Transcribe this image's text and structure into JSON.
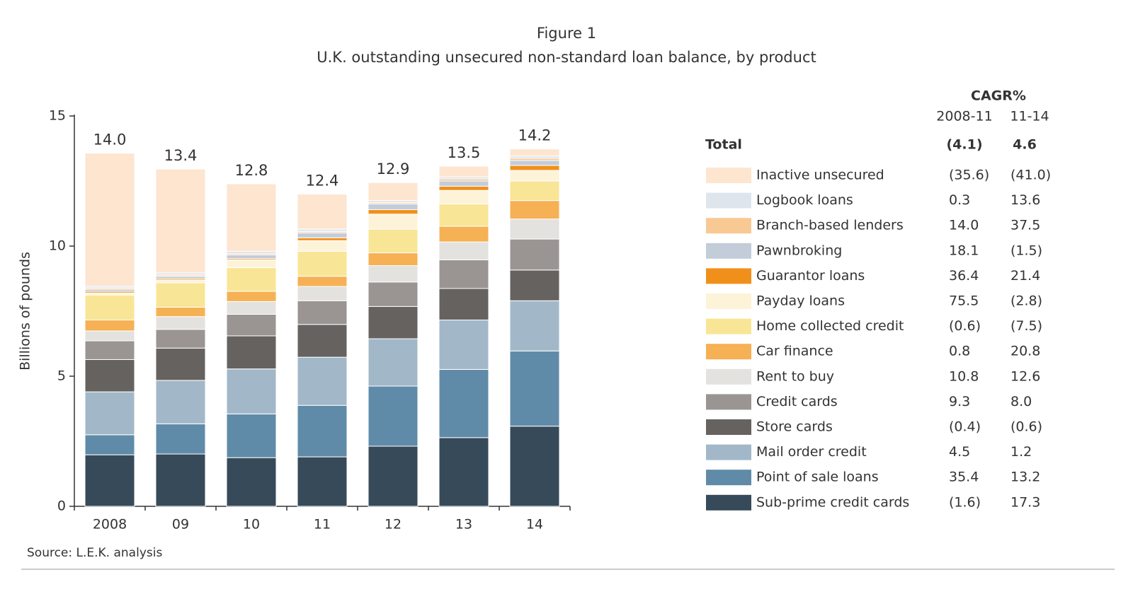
{
  "chart_data": {
    "type": "stacked_bar",
    "title": "Figure 1",
    "subtitle": "U.K. outstanding unsecured non-standard loan balance, by product",
    "y_label": "Billions of pounds",
    "source": "Source: L.E.K. analysis",
    "categories": [
      "2008",
      "09",
      "10",
      "11",
      "12",
      "13",
      "14"
    ],
    "ylim": [
      0,
      15
    ],
    "yticks": [
      0,
      5,
      10,
      15
    ],
    "totals": {
      "values": [
        14,
        13.4,
        12.8,
        12.4,
        12.9,
        13.5,
        14.2
      ],
      "value_labels": [
        "14.0",
        "13.4",
        "12.8",
        "12.4",
        "12.9",
        "13.5",
        "14.2"
      ]
    },
    "cagr_header": "CAGR%",
    "cagr_periods": [
      "2008-11",
      "11-14"
    ],
    "total_row": {
      "name": "Total",
      "cagr_values": [
        -4.1,
        4.6
      ],
      "cagr_labels": [
        "(4.1)",
        "4.6"
      ]
    },
    "series": [
      {
        "name": "Inactive unsecured",
        "color": "#fde5d0",
        "values": [
          5.12,
          3.99,
          2.59,
          1.35,
          0.69,
          0.41,
          0.27
        ],
        "cagr_values": [
          -35.6,
          -41.0
        ],
        "cagr_labels": [
          "(35.6)",
          "(41.0)"
        ]
      },
      {
        "name": "Logbook loans",
        "color": "#dfe5ec",
        "values": [
          0.06,
          0.08,
          0.09,
          0.09,
          0.08,
          0.08,
          0.09
        ],
        "cagr_values": [
          0.3,
          13.6
        ],
        "cagr_labels": [
          "0.3",
          "13.6"
        ]
      },
      {
        "name": "Branch-based lenders",
        "color": "#f9c994",
        "values": [
          0.05,
          0.05,
          0.05,
          0.05,
          0.05,
          0.08,
          0.08
        ],
        "cagr_values": [
          14.0,
          37.5
        ],
        "cagr_labels": [
          "14.0",
          "37.5"
        ]
      },
      {
        "name": "Pawnbroking",
        "color": "#c3ccd9",
        "values": [
          0.08,
          0.09,
          0.14,
          0.19,
          0.22,
          0.2,
          0.19
        ],
        "cagr_values": [
          18.1,
          -1.5
        ],
        "cagr_labels": [
          "18.1",
          "(1.5)"
        ]
      },
      {
        "name": "Guarantor loans",
        "color": "#f0901a",
        "values": [
          0.06,
          0.05,
          0.05,
          0.11,
          0.17,
          0.16,
          0.19
        ],
        "cagr_values": [
          36.4,
          21.4
        ],
        "cagr_labels": [
          "36.4",
          "21.4"
        ]
      },
      {
        "name": "Payday loans",
        "color": "#fdf3d9",
        "values": [
          0.08,
          0.11,
          0.3,
          0.41,
          0.58,
          0.52,
          0.41
        ],
        "cagr_values": [
          75.5,
          -2.8
        ],
        "cagr_labels": [
          "75.5",
          "(2.8)"
        ]
      },
      {
        "name": "Home collected credit",
        "color": "#f8e596",
        "values": [
          0.96,
          0.94,
          0.91,
          0.96,
          0.91,
          0.86,
          0.75
        ],
        "cagr_values": [
          -0.6,
          -7.5
        ],
        "cagr_labels": [
          "(0.6)",
          "(7.5)"
        ]
      },
      {
        "name": "Car finance",
        "color": "#f5b154",
        "values": [
          0.42,
          0.36,
          0.39,
          0.39,
          0.49,
          0.6,
          0.71
        ],
        "cagr_values": [
          0.8,
          20.8
        ],
        "cagr_labels": [
          "0.8",
          "20.8"
        ]
      },
      {
        "name": "Rent to buy",
        "color": "#e3e2df",
        "values": [
          0.38,
          0.49,
          0.49,
          0.55,
          0.63,
          0.69,
          0.77
        ],
        "cagr_values": [
          10.8,
          12.6
        ],
        "cagr_labels": [
          "10.8",
          "12.6"
        ]
      },
      {
        "name": "Credit cards",
        "color": "#9a9593",
        "values": [
          0.72,
          0.72,
          0.83,
          0.91,
          0.94,
          1.1,
          1.19
        ],
        "cagr_values": [
          9.3,
          8.0
        ],
        "cagr_labels": [
          "9.3",
          "8.0"
        ]
      },
      {
        "name": "Store cards",
        "color": "#65625f",
        "values": [
          1.24,
          1.24,
          1.27,
          1.26,
          1.24,
          1.21,
          1.18
        ],
        "cagr_values": [
          -0.4,
          -0.6
        ],
        "cagr_labels": [
          "(0.4)",
          "(0.6)"
        ]
      },
      {
        "name": "Mail order credit",
        "color": "#a2b8c9",
        "values": [
          1.65,
          1.67,
          1.73,
          1.85,
          1.82,
          1.9,
          1.93
        ],
        "cagr_values": [
          4.5,
          1.2
        ],
        "cagr_labels": [
          "4.5",
          "1.2"
        ]
      },
      {
        "name": "Point of sale loans",
        "color": "#5f8ba8",
        "values": [
          0.77,
          1.16,
          1.68,
          1.98,
          2.31,
          2.62,
          2.89
        ],
        "cagr_values": [
          35.4,
          13.2
        ],
        "cagr_labels": [
          "35.4",
          "13.2"
        ]
      },
      {
        "name": "Sub-prime credit cards",
        "color": "#374a59",
        "values": [
          1.98,
          2.01,
          1.87,
          1.9,
          2.31,
          2.64,
          3.08
        ],
        "cagr_values": [
          -1.6,
          17.3
        ],
        "cagr_labels": [
          "(1.6)",
          "17.3"
        ]
      }
    ]
  }
}
